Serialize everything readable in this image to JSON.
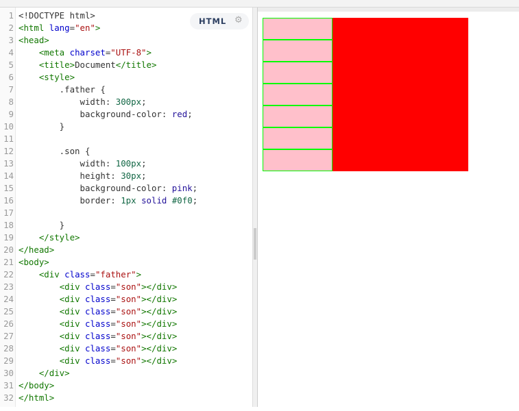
{
  "editor": {
    "language_badge": "HTML",
    "badge_icon": "gear-icon",
    "lines": [
      [
        [
          "p",
          "<!DOCTYPE html>"
        ]
      ],
      [
        [
          "t",
          "<html "
        ],
        [
          "a",
          "lang"
        ],
        [
          "p",
          "="
        ],
        [
          "s",
          "\"en\""
        ],
        [
          "t",
          ">"
        ]
      ],
      [
        [
          "t",
          "<head>"
        ]
      ],
      [
        [
          "p",
          "    "
        ],
        [
          "t",
          "<meta "
        ],
        [
          "a",
          "charset"
        ],
        [
          "p",
          "="
        ],
        [
          "s",
          "\"UTF-8\""
        ],
        [
          "t",
          ">"
        ]
      ],
      [
        [
          "p",
          "    "
        ],
        [
          "t",
          "<title>"
        ],
        [
          "p",
          "Document"
        ],
        [
          "t",
          "</title>"
        ]
      ],
      [
        [
          "p",
          "    "
        ],
        [
          "t",
          "<style>"
        ]
      ],
      [
        [
          "p",
          "        .father {"
        ]
      ],
      [
        [
          "p",
          "            width: "
        ],
        [
          "n",
          "300px"
        ],
        [
          "p",
          ";"
        ]
      ],
      [
        [
          "p",
          "            background-color: "
        ],
        [
          "v",
          "red"
        ],
        [
          "p",
          ";"
        ]
      ],
      [
        [
          "p",
          "        }"
        ]
      ],
      [
        [
          "p",
          ""
        ]
      ],
      [
        [
          "p",
          "        .son {"
        ]
      ],
      [
        [
          "p",
          "            width: "
        ],
        [
          "n",
          "100px"
        ],
        [
          "p",
          ";"
        ]
      ],
      [
        [
          "p",
          "            height: "
        ],
        [
          "n",
          "30px"
        ],
        [
          "p",
          ";"
        ]
      ],
      [
        [
          "p",
          "            background-color: "
        ],
        [
          "v",
          "pink"
        ],
        [
          "p",
          ";"
        ]
      ],
      [
        [
          "p",
          "            border: "
        ],
        [
          "n",
          "1px"
        ],
        [
          "p",
          " "
        ],
        [
          "v",
          "solid"
        ],
        [
          "p",
          " "
        ],
        [
          "n",
          "#0f0"
        ],
        [
          "p",
          ";"
        ]
      ],
      [
        [
          "p",
          ""
        ]
      ],
      [
        [
          "p",
          "        }"
        ]
      ],
      [
        [
          "p",
          "    "
        ],
        [
          "t",
          "</style>"
        ]
      ],
      [
        [
          "t",
          "</head>"
        ]
      ],
      [
        [
          "t",
          "<body>"
        ]
      ],
      [
        [
          "p",
          "    "
        ],
        [
          "t",
          "<div "
        ],
        [
          "a",
          "class"
        ],
        [
          "p",
          "="
        ],
        [
          "s",
          "\"father\""
        ],
        [
          "t",
          ">"
        ]
      ],
      [
        [
          "p",
          "        "
        ],
        [
          "t",
          "<div "
        ],
        [
          "a",
          "class"
        ],
        [
          "p",
          "="
        ],
        [
          "s",
          "\"son\""
        ],
        [
          "t",
          "></div>"
        ]
      ],
      [
        [
          "p",
          "        "
        ],
        [
          "t",
          "<div "
        ],
        [
          "a",
          "class"
        ],
        [
          "p",
          "="
        ],
        [
          "s",
          "\"son\""
        ],
        [
          "t",
          "></div>"
        ]
      ],
      [
        [
          "p",
          "        "
        ],
        [
          "t",
          "<div "
        ],
        [
          "a",
          "class"
        ],
        [
          "p",
          "="
        ],
        [
          "s",
          "\"son\""
        ],
        [
          "t",
          "></div>"
        ]
      ],
      [
        [
          "p",
          "        "
        ],
        [
          "t",
          "<div "
        ],
        [
          "a",
          "class"
        ],
        [
          "p",
          "="
        ],
        [
          "s",
          "\"son\""
        ],
        [
          "t",
          "></div>"
        ]
      ],
      [
        [
          "p",
          "        "
        ],
        [
          "t",
          "<div "
        ],
        [
          "a",
          "class"
        ],
        [
          "p",
          "="
        ],
        [
          "s",
          "\"son\""
        ],
        [
          "t",
          "></div>"
        ]
      ],
      [
        [
          "p",
          "        "
        ],
        [
          "t",
          "<div "
        ],
        [
          "a",
          "class"
        ],
        [
          "p",
          "="
        ],
        [
          "s",
          "\"son\""
        ],
        [
          "t",
          "></div>"
        ]
      ],
      [
        [
          "p",
          "        "
        ],
        [
          "t",
          "<div "
        ],
        [
          "a",
          "class"
        ],
        [
          "p",
          "="
        ],
        [
          "s",
          "\"son\""
        ],
        [
          "t",
          "></div>"
        ]
      ],
      [
        [
          "p",
          "    "
        ],
        [
          "t",
          "</div>"
        ]
      ],
      [
        [
          "t",
          "</body>"
        ]
      ],
      [
        [
          "t",
          "</html>"
        ]
      ]
    ]
  },
  "preview": {
    "father_color": "#ff0000",
    "son_color": "#ffc0cb",
    "son_border": "#00ff00",
    "son_count": 7
  }
}
